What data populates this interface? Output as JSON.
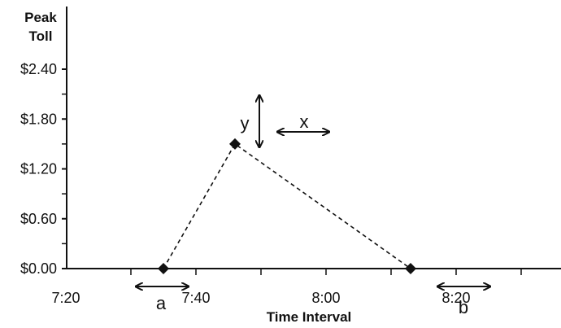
{
  "chart_data": {
    "type": "line",
    "title": "",
    "ylabel": "Peak Toll",
    "xlabel": "Time Interval",
    "ylim": [
      0,
      2.4
    ],
    "xlim_minutes": [
      "7:20",
      "8:30"
    ],
    "y_ticks": [
      "$0.00",
      "$0.60",
      "$1.20",
      "$1.80",
      "$2.40"
    ],
    "x_ticks": [
      "7:20",
      "7:40",
      "8:00",
      "8:20"
    ],
    "series": [
      {
        "points": [
          {
            "x": "7:35",
            "y": 0.0
          },
          {
            "x": "7:46",
            "y": 1.5
          },
          {
            "x": "8:13",
            "y": 0.0
          }
        ]
      }
    ],
    "annotations": {
      "a": "a",
      "b": "b",
      "x": "x",
      "y": "y"
    },
    "grid": false
  }
}
